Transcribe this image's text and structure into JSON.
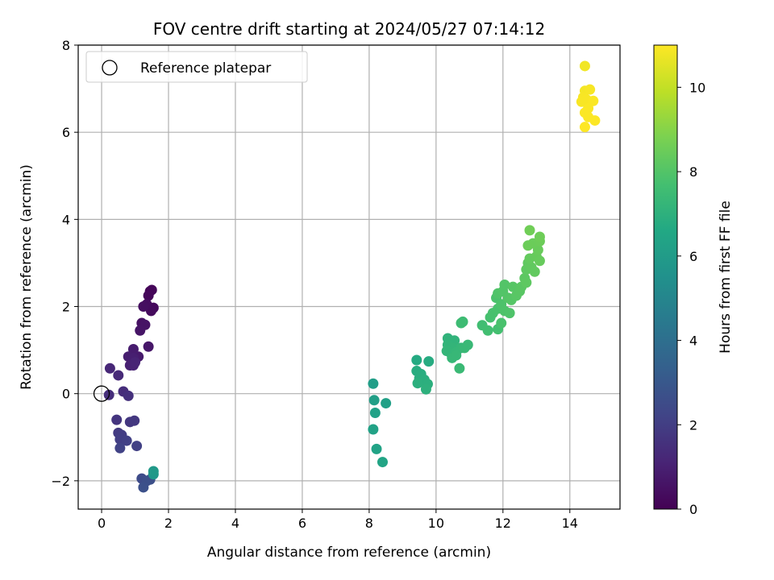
{
  "chart_data": {
    "type": "scatter",
    "title": "FOV centre drift starting at 2024/05/27 07:14:12",
    "xlabel": "Angular distance from reference (arcmin)",
    "ylabel": "Rotation from reference (arcmin)",
    "colorbar_label": "Hours from first FF file",
    "xlim": [
      -0.7,
      15.5
    ],
    "ylim": [
      -2.65,
      8
    ],
    "clim": [
      0,
      11
    ],
    "colormap": "viridis",
    "x_ticks": [
      0,
      2,
      4,
      6,
      8,
      10,
      12,
      14
    ],
    "x_tick_labels": [
      "0",
      "2",
      "4",
      "6",
      "8",
      "10",
      "12",
      "14"
    ],
    "y_ticks": [
      -2,
      0,
      2,
      4,
      6,
      8
    ],
    "y_tick_labels": [
      "−2",
      "0",
      "2",
      "4",
      "6",
      "8"
    ],
    "colorbar_ticks": [
      0,
      2,
      4,
      6,
      8,
      10
    ],
    "colorbar_tick_labels": [
      "0",
      "2",
      "4",
      "6",
      "8",
      "10"
    ],
    "grid": true,
    "legend": {
      "position": "top-left",
      "label": "Reference platepar"
    },
    "reference_point": {
      "x": 0,
      "y": 0
    },
    "points": [
      {
        "x": 1.45,
        "y": 2.35,
        "t": 0.1
      },
      {
        "x": 1.5,
        "y": 2.38,
        "t": 0.15
      },
      {
        "x": 1.4,
        "y": 2.25,
        "t": 0.2
      },
      {
        "x": 1.55,
        "y": 1.97,
        "t": 0.25
      },
      {
        "x": 1.48,
        "y": 1.9,
        "t": 0.3
      },
      {
        "x": 1.35,
        "y": 2.05,
        "t": 0.35
      },
      {
        "x": 1.25,
        "y": 2.0,
        "t": 0.4
      },
      {
        "x": 1.2,
        "y": 1.62,
        "t": 0.5
      },
      {
        "x": 1.3,
        "y": 1.58,
        "t": 0.55
      },
      {
        "x": 1.15,
        "y": 1.45,
        "t": 0.6
      },
      {
        "x": 1.4,
        "y": 1.08,
        "t": 0.7
      },
      {
        "x": 1.1,
        "y": 0.85,
        "t": 0.8
      },
      {
        "x": 0.95,
        "y": 1.02,
        "t": 0.85
      },
      {
        "x": 0.8,
        "y": 0.85,
        "t": 0.9
      },
      {
        "x": 0.95,
        "y": 0.82,
        "t": 0.95
      },
      {
        "x": 0.85,
        "y": 0.65,
        "t": 1.0
      },
      {
        "x": 0.95,
        "y": 0.65,
        "t": 1.05
      },
      {
        "x": 1.0,
        "y": 0.72,
        "t": 1.1
      },
      {
        "x": 0.25,
        "y": 0.58,
        "t": 1.2
      },
      {
        "x": 0.5,
        "y": 0.42,
        "t": 1.3
      },
      {
        "x": 0.65,
        "y": 0.05,
        "t": 1.4
      },
      {
        "x": 0.22,
        "y": -0.03,
        "t": 1.45
      },
      {
        "x": 0.8,
        "y": -0.05,
        "t": 1.5
      },
      {
        "x": 0.45,
        "y": -0.6,
        "t": 1.7
      },
      {
        "x": 0.85,
        "y": -0.65,
        "t": 1.75
      },
      {
        "x": 0.98,
        "y": -0.62,
        "t": 1.8
      },
      {
        "x": 0.5,
        "y": -0.9,
        "t": 1.9
      },
      {
        "x": 0.6,
        "y": -0.95,
        "t": 1.95
      },
      {
        "x": 0.55,
        "y": -1.05,
        "t": 2.0
      },
      {
        "x": 0.75,
        "y": -1.08,
        "t": 2.05
      },
      {
        "x": 1.05,
        "y": -1.2,
        "t": 2.1
      },
      {
        "x": 0.55,
        "y": -1.25,
        "t": 2.15
      },
      {
        "x": 1.2,
        "y": -1.95,
        "t": 2.5
      },
      {
        "x": 1.35,
        "y": -2.0,
        "t": 2.6
      },
      {
        "x": 1.45,
        "y": -1.97,
        "t": 2.65
      },
      {
        "x": 1.25,
        "y": -2.15,
        "t": 2.7
      },
      {
        "x": 1.55,
        "y": -1.85,
        "t": 5.8
      },
      {
        "x": 1.55,
        "y": -1.78,
        "t": 5.9
      },
      {
        "x": 8.12,
        "y": 0.23,
        "t": 6.1
      },
      {
        "x": 8.15,
        "y": -0.15,
        "t": 6.15
      },
      {
        "x": 8.5,
        "y": -0.22,
        "t": 6.2
      },
      {
        "x": 8.18,
        "y": -0.44,
        "t": 6.25
      },
      {
        "x": 8.12,
        "y": -0.82,
        "t": 6.3
      },
      {
        "x": 8.22,
        "y": -1.27,
        "t": 6.35
      },
      {
        "x": 8.4,
        "y": -1.57,
        "t": 6.4
      },
      {
        "x": 9.42,
        "y": 0.77,
        "t": 6.7
      },
      {
        "x": 9.78,
        "y": 0.74,
        "t": 6.75
      },
      {
        "x": 9.42,
        "y": 0.52,
        "t": 6.8
      },
      {
        "x": 9.55,
        "y": 0.45,
        "t": 6.82
      },
      {
        "x": 9.5,
        "y": 0.35,
        "t": 6.85
      },
      {
        "x": 9.55,
        "y": 0.27,
        "t": 6.88
      },
      {
        "x": 9.65,
        "y": 0.32,
        "t": 6.9
      },
      {
        "x": 9.75,
        "y": 0.22,
        "t": 6.92
      },
      {
        "x": 9.45,
        "y": 0.24,
        "t": 6.95
      },
      {
        "x": 9.7,
        "y": 0.1,
        "t": 6.98
      },
      {
        "x": 10.35,
        "y": 1.27,
        "t": 7.1
      },
      {
        "x": 10.55,
        "y": 1.22,
        "t": 7.12
      },
      {
        "x": 10.35,
        "y": 1.12,
        "t": 7.15
      },
      {
        "x": 10.5,
        "y": 1.05,
        "t": 7.18
      },
      {
        "x": 10.32,
        "y": 0.98,
        "t": 7.2
      },
      {
        "x": 10.45,
        "y": 0.92,
        "t": 7.22
      },
      {
        "x": 10.6,
        "y": 0.95,
        "t": 7.25
      },
      {
        "x": 10.75,
        "y": 1.05,
        "t": 7.28
      },
      {
        "x": 10.48,
        "y": 0.82,
        "t": 7.3
      },
      {
        "x": 10.6,
        "y": 0.88,
        "t": 7.32
      },
      {
        "x": 10.85,
        "y": 1.05,
        "t": 7.35
      },
      {
        "x": 10.95,
        "y": 1.12,
        "t": 7.38
      },
      {
        "x": 10.7,
        "y": 0.58,
        "t": 7.4
      },
      {
        "x": 10.75,
        "y": 1.62,
        "t": 7.5
      },
      {
        "x": 10.8,
        "y": 1.65,
        "t": 7.52
      },
      {
        "x": 11.38,
        "y": 1.57,
        "t": 7.6
      },
      {
        "x": 11.55,
        "y": 1.45,
        "t": 7.65
      },
      {
        "x": 11.85,
        "y": 1.48,
        "t": 7.7
      },
      {
        "x": 11.62,
        "y": 1.75,
        "t": 7.75
      },
      {
        "x": 11.7,
        "y": 1.85,
        "t": 7.78
      },
      {
        "x": 11.85,
        "y": 1.95,
        "t": 7.8
      },
      {
        "x": 11.95,
        "y": 1.62,
        "t": 7.82
      },
      {
        "x": 11.8,
        "y": 2.2,
        "t": 7.85
      },
      {
        "x": 11.95,
        "y": 2.05,
        "t": 7.88
      },
      {
        "x": 12.05,
        "y": 1.9,
        "t": 7.9
      },
      {
        "x": 12.2,
        "y": 1.85,
        "t": 7.92
      },
      {
        "x": 11.85,
        "y": 2.3,
        "t": 7.95
      },
      {
        "x": 12.0,
        "y": 2.35,
        "t": 7.98
      },
      {
        "x": 12.05,
        "y": 2.5,
        "t": 8.0
      },
      {
        "x": 12.15,
        "y": 2.2,
        "t": 8.02
      },
      {
        "x": 12.25,
        "y": 2.15,
        "t": 8.05
      },
      {
        "x": 12.3,
        "y": 2.45,
        "t": 8.08
      },
      {
        "x": 12.4,
        "y": 2.25,
        "t": 8.1
      },
      {
        "x": 12.5,
        "y": 2.35,
        "t": 8.12
      },
      {
        "x": 12.55,
        "y": 2.45,
        "t": 8.15
      },
      {
        "x": 12.65,
        "y": 2.65,
        "t": 8.2
      },
      {
        "x": 12.7,
        "y": 2.55,
        "t": 8.22
      },
      {
        "x": 12.7,
        "y": 2.85,
        "t": 8.25
      },
      {
        "x": 12.75,
        "y": 3.0,
        "t": 8.28
      },
      {
        "x": 12.85,
        "y": 2.9,
        "t": 8.3
      },
      {
        "x": 12.95,
        "y": 2.8,
        "t": 8.32
      },
      {
        "x": 12.8,
        "y": 3.1,
        "t": 8.35
      },
      {
        "x": 13.0,
        "y": 3.15,
        "t": 8.4
      },
      {
        "x": 13.1,
        "y": 3.05,
        "t": 8.42
      },
      {
        "x": 13.05,
        "y": 3.3,
        "t": 8.45
      },
      {
        "x": 12.9,
        "y": 3.45,
        "t": 8.48
      },
      {
        "x": 12.75,
        "y": 3.4,
        "t": 8.5
      },
      {
        "x": 13.1,
        "y": 3.5,
        "t": 8.52
      },
      {
        "x": 13.1,
        "y": 3.6,
        "t": 8.55
      },
      {
        "x": 12.8,
        "y": 3.75,
        "t": 8.6
      },
      {
        "x": 14.45,
        "y": 7.52,
        "t": 10.8
      },
      {
        "x": 14.45,
        "y": 6.95,
        "t": 10.85
      },
      {
        "x": 14.6,
        "y": 6.98,
        "t": 10.9
      },
      {
        "x": 14.4,
        "y": 6.8,
        "t": 10.9
      },
      {
        "x": 14.5,
        "y": 6.75,
        "t": 10.92
      },
      {
        "x": 14.35,
        "y": 6.7,
        "t": 10.92
      },
      {
        "x": 14.7,
        "y": 6.72,
        "t": 10.95
      },
      {
        "x": 14.55,
        "y": 6.55,
        "t": 10.95
      },
      {
        "x": 14.45,
        "y": 6.45,
        "t": 10.97
      },
      {
        "x": 14.55,
        "y": 6.35,
        "t": 10.97
      },
      {
        "x": 14.75,
        "y": 6.27,
        "t": 10.98
      },
      {
        "x": 14.45,
        "y": 6.12,
        "t": 11.0
      }
    ]
  }
}
